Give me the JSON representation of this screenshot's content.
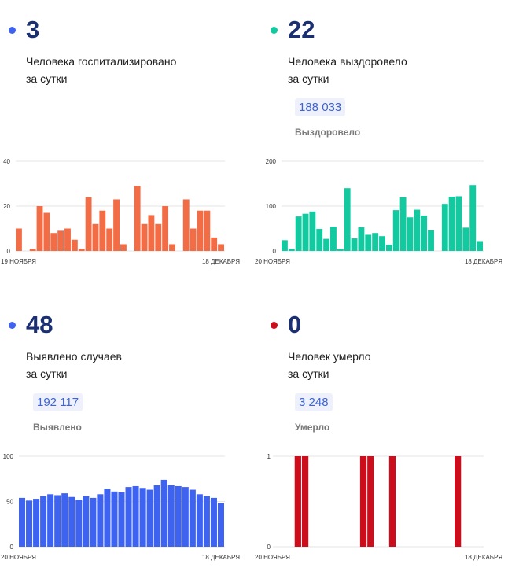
{
  "cards": [
    {
      "value": "3",
      "desc_line1": "Человека госпитализировано",
      "desc_line2": "за сутки",
      "total": "",
      "total_label": "",
      "color": "#f26d45"
    },
    {
      "value": "22",
      "desc_line1": "Человека выздоровело",
      "desc_line2": "за сутки",
      "total": "188 033",
      "total_label": "Выздоровело",
      "color": "#12c9a0"
    },
    {
      "value": "48",
      "desc_line1": "Выявлено случаев",
      "desc_line2": "за сутки",
      "total": "192 117",
      "total_label": "Выявлено",
      "color": "#3d63f0"
    },
    {
      "value": "0",
      "desc_line1": "Человек умерло",
      "desc_line2": "за сутки",
      "total": "3 248",
      "total_label": "Умерло",
      "color": "#cc0e1c"
    }
  ],
  "chart_data": [
    {
      "type": "bar",
      "color": "#f26d45",
      "ylim": [
        0,
        40
      ],
      "yticks": [
        "0",
        "20",
        "40"
      ],
      "x_start_label": "19 НОЯБРЯ",
      "x_end_label": "18 ДЕКАБРЯ",
      "values": [
        10,
        0,
        1,
        20,
        17,
        8,
        9,
        10,
        5,
        1,
        24,
        12,
        18,
        10,
        23,
        3,
        0,
        29,
        12,
        16,
        12,
        20,
        3,
        0,
        23,
        10,
        18,
        18,
        6,
        3
      ]
    },
    {
      "type": "bar",
      "color": "#12c9a0",
      "ylim": [
        0,
        200
      ],
      "yticks": [
        "0",
        "100",
        "200"
      ],
      "x_start_label": "20 НОЯБРЯ",
      "x_end_label": "18 ДЕКАБРЯ",
      "values": [
        24,
        5,
        77,
        83,
        88,
        49,
        27,
        54,
        5,
        140,
        28,
        53,
        36,
        40,
        33,
        14,
        91,
        120,
        75,
        92,
        79,
        46,
        0,
        105,
        121,
        122,
        52,
        147,
        22
      ]
    },
    {
      "type": "bar",
      "color": "#3d63f0",
      "ylim": [
        0,
        100
      ],
      "yticks": [
        "0",
        "50",
        "100"
      ],
      "x_start_label": "20 НОЯБРЯ",
      "x_end_label": "18 ДЕКАБРЯ",
      "values": [
        54,
        51,
        53,
        56,
        58,
        57,
        59,
        55,
        52,
        56,
        54,
        58,
        64,
        61,
        60,
        66,
        67,
        65,
        63,
        68,
        74,
        68,
        67,
        66,
        63,
        58,
        56,
        54,
        48
      ]
    },
    {
      "type": "bar",
      "color": "#cc0e1c",
      "ylim": [
        0,
        1
      ],
      "yticks": [
        "0",
        "1"
      ],
      "x_start_label": "20 НОЯБРЯ",
      "x_end_label": "18 ДЕКАБРЯ",
      "values": [
        0,
        0,
        0,
        1,
        1,
        0,
        0,
        0,
        0,
        0,
        0,
        0,
        1,
        1,
        0,
        0,
        1,
        0,
        0,
        0,
        0,
        0,
        0,
        0,
        0,
        1,
        0,
        0,
        0
      ]
    }
  ]
}
